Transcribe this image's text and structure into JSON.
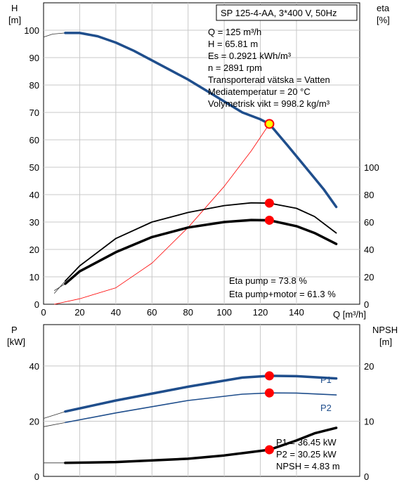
{
  "colors": {
    "blue": "#1f4e8c",
    "red": "#ff0000",
    "dot": "#ff0000",
    "op_fill": "#ffff00",
    "grid": "#c8c8c8"
  },
  "chart_data": [
    {
      "type": "line",
      "ylabel_left": [
        "H",
        "[m]"
      ],
      "ylabel_right": [
        "eta",
        "[%]"
      ],
      "xlabel": "Q [m³/h]",
      "xlim": [
        0,
        175
      ],
      "ylim": [
        0,
        110
      ],
      "ylim_right": [
        0,
        220
      ],
      "grid": true,
      "x_ticks": [
        0,
        20,
        40,
        60,
        80,
        100,
        120,
        140
      ],
      "y_ticks": [
        0,
        10,
        20,
        30,
        40,
        50,
        60,
        70,
        80,
        90,
        100
      ],
      "y_ticks_right": [
        0,
        20,
        40,
        60,
        80,
        100
      ],
      "info_box": {
        "title": "SP 125-4-AA, 3*400 V, 50Hz",
        "lines": [
          "Q = 125 m³/h",
          "H = 65.81 m",
          "Es = 0.2921 kWh/m³",
          "n = 2891 rpm",
          "Transporterad vätska = Vatten",
          "Mediatemperatur = 20 °C",
          "Volymetrisk vikt = 998.2 kg/m³"
        ]
      },
      "annotations": [
        "Eta pump = 73.8 %",
        "Eta pump+motor = 61.3 %"
      ],
      "series": [
        {
          "axis": "left",
          "style": "thin",
          "points": [
            [
              0,
              97.5
            ],
            [
              5,
              98.6
            ],
            [
              12,
              99
            ]
          ]
        },
        {
          "axis": "left",
          "style": "blue",
          "points": [
            [
              12,
              99
            ],
            [
              20,
              99
            ],
            [
              30,
              97.8
            ],
            [
              40,
              95.5
            ],
            [
              50,
              92.5
            ],
            [
              60,
              89
            ],
            [
              70,
              85.5
            ],
            [
              80,
              82
            ],
            [
              90,
              78
            ],
            [
              100,
              74
            ],
            [
              110,
              70
            ],
            [
              120,
              67.5
            ],
            [
              125,
              65.8
            ],
            [
              135,
              58
            ],
            [
              145,
              50
            ],
            [
              155,
              42
            ],
            [
              162,
              35.5
            ]
          ]
        },
        {
          "axis": "left",
          "style": "red",
          "points": [
            [
              6,
              0
            ],
            [
              20,
              2
            ],
            [
              40,
              6
            ],
            [
              60,
              15
            ],
            [
              80,
              28
            ],
            [
              100,
              43
            ],
            [
              115,
              56
            ],
            [
              125,
              65.8
            ]
          ]
        },
        {
          "axis": "right",
          "style": "thin",
          "points": [
            [
              6,
              8
            ],
            [
              12,
              17
            ]
          ]
        },
        {
          "axis": "right",
          "style": "medium",
          "points": [
            [
              12,
              17
            ],
            [
              20,
              28
            ],
            [
              40,
              48
            ],
            [
              60,
              60
            ],
            [
              80,
              67
            ],
            [
              100,
              72
            ],
            [
              115,
              74
            ],
            [
              125,
              73.8
            ],
            [
              140,
              70
            ],
            [
              150,
              64
            ],
            [
              162,
              52
            ]
          ]
        },
        {
          "axis": "right",
          "style": "thin",
          "points": [
            [
              6,
              10
            ],
            [
              12,
              15
            ]
          ]
        },
        {
          "axis": "right",
          "style": "thick",
          "points": [
            [
              12,
              15
            ],
            [
              20,
              24
            ],
            [
              40,
              38
            ],
            [
              60,
              49
            ],
            [
              80,
              56
            ],
            [
              100,
              60
            ],
            [
              115,
              61.5
            ],
            [
              125,
              61.3
            ],
            [
              140,
              57
            ],
            [
              150,
              52
            ],
            [
              162,
              44
            ]
          ]
        }
      ],
      "markers": [
        {
          "axis": "left",
          "x": 125,
          "y": 65.81,
          "kind": "operating-point"
        },
        {
          "axis": "right",
          "x": 125,
          "y": 73.8,
          "kind": "dot"
        },
        {
          "axis": "right",
          "x": 125,
          "y": 61.3,
          "kind": "dot"
        }
      ]
    },
    {
      "type": "line",
      "ylabel_left": [
        "P",
        "[kW]"
      ],
      "ylabel_right": [
        "NPSH",
        "[m]"
      ],
      "xlim": [
        0,
        175
      ],
      "ylim": [
        0,
        55
      ],
      "ylim_right": [
        0,
        27.5
      ],
      "grid": true,
      "y_ticks": [
        0,
        20,
        40
      ],
      "y_ticks_right": [
        0,
        10,
        20
      ],
      "annotations": [
        "P1 = 36.45 kW",
        "P2 = 30.25 kW",
        "NPSH = 4.83 m"
      ],
      "series": [
        {
          "axis": "left",
          "style": "thin",
          "points": [
            [
              0,
              21
            ],
            [
              12,
              23.5
            ]
          ]
        },
        {
          "axis": "left",
          "style": "blue",
          "name": "P1",
          "points": [
            [
              12,
              23.5
            ],
            [
              40,
              27.5
            ],
            [
              80,
              32.5
            ],
            [
              110,
              35.8
            ],
            [
              125,
              36.45
            ],
            [
              140,
              36.3
            ],
            [
              162,
              35.5
            ]
          ]
        },
        {
          "axis": "left",
          "style": "thin",
          "points": [
            [
              0,
              18
            ],
            [
              12,
              19.5
            ]
          ]
        },
        {
          "axis": "left",
          "style": "blue_thin",
          "name": "P2",
          "points": [
            [
              12,
              19.5
            ],
            [
              40,
              23
            ],
            [
              80,
              27.5
            ],
            [
              110,
              29.8
            ],
            [
              125,
              30.25
            ],
            [
              140,
              30.2
            ],
            [
              162,
              29.5
            ]
          ]
        },
        {
          "axis": "right",
          "style": "thin",
          "points": [
            [
              0,
              2.45
            ],
            [
              12,
              2.45
            ]
          ]
        },
        {
          "axis": "right",
          "style": "thick",
          "points": [
            [
              12,
              2.45
            ],
            [
              40,
              2.6
            ],
            [
              80,
              3.2
            ],
            [
              100,
              3.8
            ],
            [
              115,
              4.4
            ],
            [
              125,
              4.83
            ],
            [
              140,
              6.5
            ],
            [
              150,
              7.8
            ],
            [
              162,
              8.8
            ]
          ]
        }
      ],
      "markers": [
        {
          "axis": "left",
          "x": 125,
          "y": 36.45,
          "kind": "dot"
        },
        {
          "axis": "left",
          "x": 125,
          "y": 30.25,
          "kind": "dot"
        },
        {
          "axis": "right",
          "x": 125,
          "y": 4.83,
          "kind": "dot"
        }
      ]
    }
  ]
}
